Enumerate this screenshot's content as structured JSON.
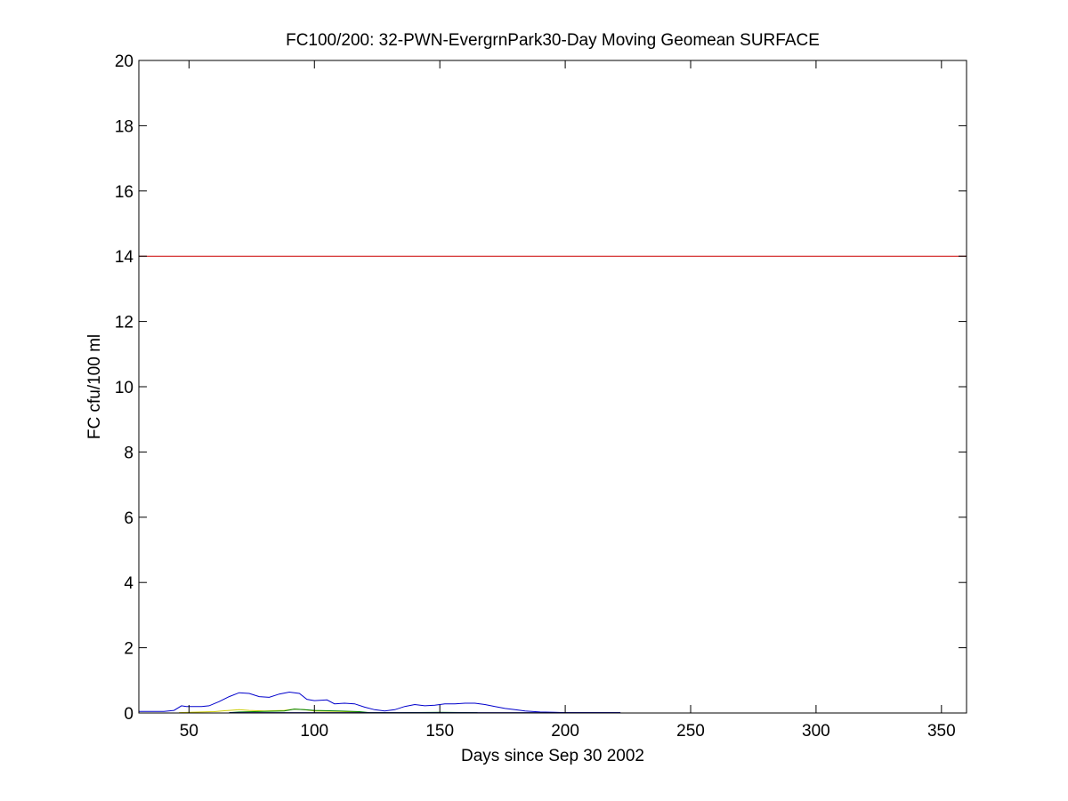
{
  "chart_data": {
    "type": "line",
    "title": "FC100/200: 32-PWN-EvergrnPark30-Day Moving Geomean SURFACE",
    "xlabel": "Days since Sep 30 2002",
    "ylabel": "FC cfu/100 ml",
    "xlim": [
      30,
      360
    ],
    "ylim": [
      0,
      20
    ],
    "xticks": [
      50,
      100,
      150,
      200,
      250,
      300,
      350
    ],
    "yticks": [
      0,
      2,
      4,
      6,
      8,
      10,
      12,
      14,
      16,
      18,
      20
    ],
    "grid": false,
    "series": [
      {
        "color": "#0000cc",
        "x": [
          30,
          40,
          44,
          47,
          49,
          55,
          58,
          62,
          66,
          70,
          74,
          78,
          82,
          86,
          90,
          94,
          97,
          100,
          105,
          108,
          112,
          116,
          120,
          124,
          128,
          132,
          136,
          140,
          144,
          148,
          152,
          156,
          160,
          164,
          168,
          172,
          176,
          180,
          184,
          190,
          196,
          200,
          210,
          222
        ],
        "y": [
          0.05,
          0.05,
          0.08,
          0.22,
          0.2,
          0.2,
          0.22,
          0.35,
          0.5,
          0.62,
          0.6,
          0.5,
          0.48,
          0.58,
          0.64,
          0.6,
          0.42,
          0.38,
          0.4,
          0.28,
          0.3,
          0.28,
          0.18,
          0.1,
          0.06,
          0.1,
          0.2,
          0.26,
          0.22,
          0.24,
          0.28,
          0.28,
          0.3,
          0.3,
          0.26,
          0.2,
          0.14,
          0.1,
          0.06,
          0.03,
          0.02,
          0.01,
          0.01,
          0.01
        ]
      },
      {
        "color": "#cccc00",
        "x": [
          46,
          50,
          60,
          66,
          70,
          74,
          80,
          88,
          92,
          96,
          100,
          110,
          120
        ],
        "y": [
          0.01,
          0.02,
          0.04,
          0.08,
          0.1,
          0.08,
          0.06,
          0.08,
          0.12,
          0.1,
          0.06,
          0.05,
          0.02
        ]
      },
      {
        "color": "#008000",
        "x": [
          66,
          70,
          80,
          88,
          92,
          96,
          100,
          110,
          118,
          122,
          134,
          150,
          165
        ],
        "y": [
          0.01,
          0.03,
          0.05,
          0.06,
          0.12,
          0.1,
          0.08,
          0.06,
          0.04,
          0.01,
          0.01,
          0.02,
          0.01
        ]
      },
      {
        "color": "#000080",
        "x": [
          66,
          70,
          90,
          100,
          120,
          150,
          180,
          200,
          222
        ],
        "y": [
          0.01,
          0.01,
          0.01,
          0.01,
          0.01,
          0.01,
          0.01,
          0.01,
          0.01
        ]
      },
      {
        "color": "#cc0000",
        "x": [
          30,
          360
        ],
        "y": [
          14,
          14
        ]
      }
    ]
  }
}
